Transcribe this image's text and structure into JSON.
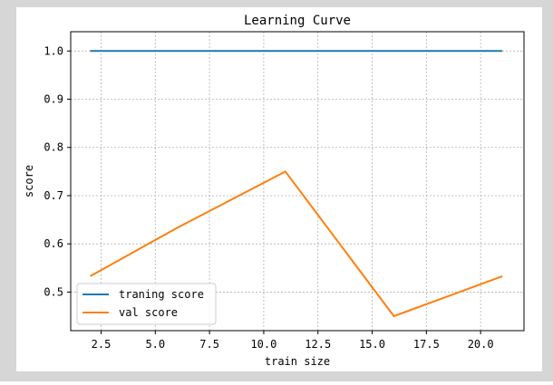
{
  "chart_data": {
    "type": "line",
    "title": "Learning Curve",
    "xlabel": "train size",
    "ylabel": "score",
    "xlim": [
      1.1,
      22.0
    ],
    "ylim": [
      0.42,
      1.04
    ],
    "xticks": [
      2.5,
      5.0,
      7.5,
      10.0,
      12.5,
      15.0,
      17.5,
      20.0
    ],
    "xtick_labels": [
      "2.5",
      "5.0",
      "7.5",
      "10.0",
      "12.5",
      "15.0",
      "17.5",
      "20.0"
    ],
    "yticks": [
      0.5,
      0.6,
      0.7,
      0.8,
      0.9,
      1.0
    ],
    "ytick_labels": [
      "0.5",
      "0.6",
      "0.7",
      "0.8",
      "0.9",
      "1.0"
    ],
    "grid": true,
    "legend_position": "lower-left",
    "series": [
      {
        "name": "traning score",
        "color": "#1f77b4",
        "x": [
          2,
          6,
          11,
          16,
          21
        ],
        "y": [
          1.0,
          1.0,
          1.0,
          1.0,
          1.0
        ]
      },
      {
        "name": "val score",
        "color": "#ff7f0e",
        "x": [
          2,
          6,
          11,
          16,
          21
        ],
        "y": [
          0.533,
          0.633,
          0.75,
          0.45,
          0.533
        ]
      }
    ]
  }
}
